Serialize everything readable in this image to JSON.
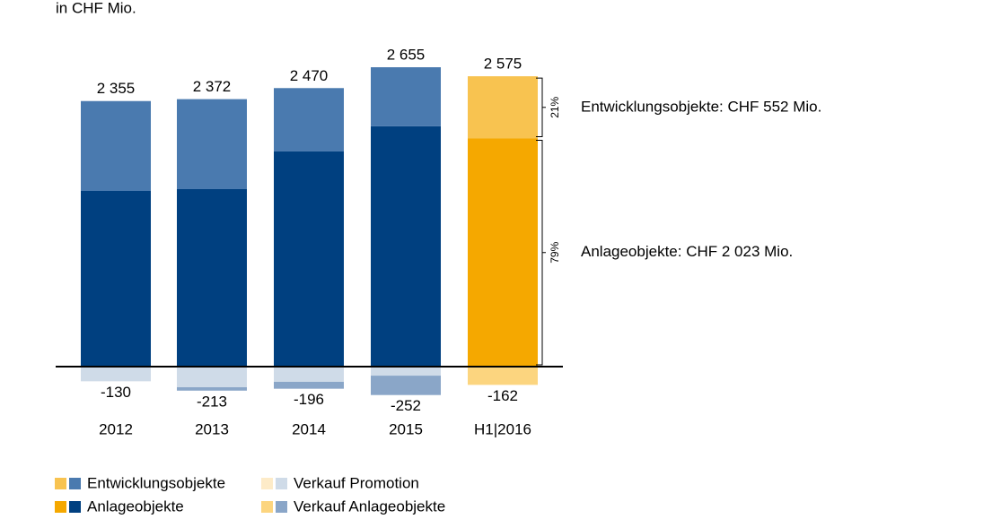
{
  "chart_data": {
    "type": "stacked_bar",
    "subtitle": "in CHF Mio.",
    "categories": [
      "2012",
      "2013",
      "2014",
      "2015",
      "H1|2016"
    ],
    "series": [
      {
        "name": "Anlageobjekte",
        "colors": [
          "#004080",
          "#004080",
          "#004080",
          "#004080",
          "#f5a800"
        ],
        "values": [
          1558,
          1574,
          1908,
          2131,
          2023
        ]
      },
      {
        "name": "Entwicklungsobjekte",
        "colors": [
          "#4a7aaf",
          "#4a7aaf",
          "#4a7aaf",
          "#4a7aaf",
          "#f8c350"
        ],
        "values": [
          797,
          798,
          562,
          524,
          552
        ]
      },
      {
        "name": "Verkauf Promotion",
        "colors": [
          "#cfdbe8",
          "#cfdbe8",
          "#cfdbe8",
          "#cfdbe8",
          "#fdebc8"
        ],
        "values": [
          -130,
          -183,
          -135,
          -80,
          0
        ]
      },
      {
        "name": "Verkauf Anlageobjekte",
        "colors": [
          "#8aa6c8",
          "#8aa6c8",
          "#8aa6c8",
          "#8aa6c8",
          "#fcd57f"
        ],
        "values": [
          0,
          -30,
          -61,
          -172,
          -162
        ]
      }
    ],
    "totals": [
      2355,
      2372,
      2470,
      2655,
      2575
    ],
    "total_labels": [
      "2 355",
      "2 372",
      "2 470",
      "2 655",
      "2 575"
    ],
    "negative_totals": [
      -130,
      -213,
      -196,
      -252,
      -162
    ],
    "ylim": [
      -500,
      2800
    ],
    "annotations": {
      "entw_share": "21%",
      "anlage_share": "79%",
      "entw_label": "Entwicklungsobjekte: CHF 552 Mio.",
      "anlage_label": "Anlageobjekte: CHF 2 023 Mio."
    }
  }
}
